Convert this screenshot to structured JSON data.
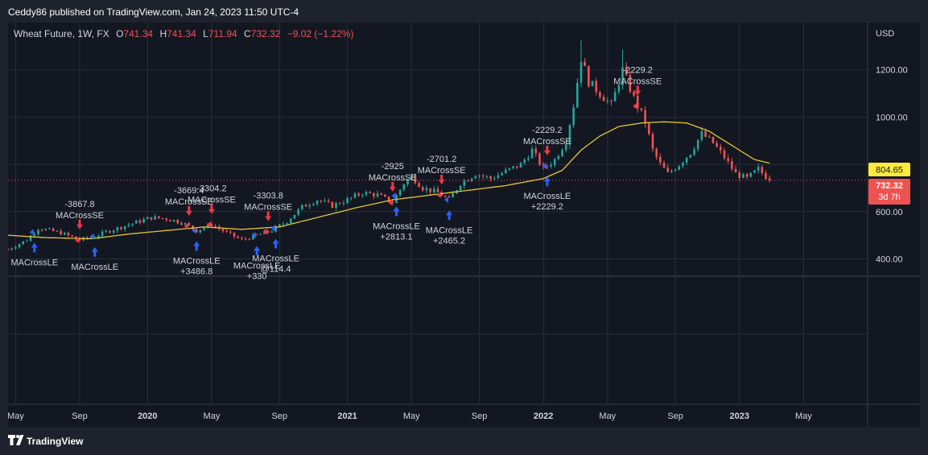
{
  "header": {
    "published_text": "Ceddy86 published on TradingView.com, Jan 24, 2023 11:50 UTC-4"
  },
  "footer": {
    "brand": "TradingView",
    "logo_icon": "tradingview-logo-icon"
  },
  "chart_data": {
    "type": "candlestick",
    "symbol_line": {
      "name": "Wheat Future, 1W, FX",
      "open_label": "O",
      "open": "741.34",
      "high_label": "H",
      "high": "741.34",
      "low_label": "L",
      "low": "711.94",
      "close_label": "C",
      "close": "732.32",
      "change": "−9.02 (−1.22%)"
    },
    "currency": "USD",
    "y_ticks": [
      {
        "label": "1200.00",
        "value": 1200
      },
      {
        "label": "1000.00",
        "value": 1000
      },
      {
        "label": "600.00",
        "value": 600
      },
      {
        "label": "400.00",
        "value": 400
      }
    ],
    "ylim": [
      330,
      1400
    ],
    "x_labels": [
      {
        "label": "May",
        "week": 0
      },
      {
        "label": "Sep",
        "week": 17
      },
      {
        "label": "2020",
        "week": 35
      },
      {
        "label": "May",
        "week": 52
      },
      {
        "label": "Sep",
        "week": 70
      },
      {
        "label": "2021",
        "week": 88
      },
      {
        "label": "May",
        "week": 105
      },
      {
        "label": "Sep",
        "week": 123
      },
      {
        "label": "2022",
        "week": 140
      },
      {
        "label": "May",
        "week": 157
      },
      {
        "label": "Sep",
        "week": 175
      },
      {
        "label": "2023",
        "week": 192
      },
      {
        "label": "May",
        "week": 209
      }
    ],
    "x_range_weeks": [
      -2,
      226
    ],
    "ma_price_label": "804.65",
    "last_price_label": "732.32",
    "countdown_label": "3d 7h",
    "last_price": 732.32,
    "colors": {
      "up": "#26a69a",
      "down": "#ef5350",
      "ma": "#e5c52f",
      "buy": "#2962ff",
      "sell": "#f23645",
      "text": "#d1d4dc",
      "grid": "#2a2e39",
      "last_badge": "#ef5350",
      "ma_badge": "#ffeb3b"
    },
    "signals": [
      {
        "type": "LE",
        "week": 5,
        "lines": [
          "MACrossLE"
        ]
      },
      {
        "type": "SE",
        "week": 17,
        "lines": [
          "-3867.8",
          "MACrossSE"
        ]
      },
      {
        "type": "LE",
        "week": 21,
        "lines": [
          "MACrossLE"
        ]
      },
      {
        "type": "SE",
        "week": 46,
        "lines": [
          "-3669.4",
          "MACrossSE"
        ]
      },
      {
        "type": "LE",
        "week": 48,
        "lines": [
          "MACrossLE",
          "+3486.8"
        ]
      },
      {
        "type": "SE",
        "week": 52,
        "lines": [
          "-3304.2",
          "MACrossSE"
        ]
      },
      {
        "type": "LE",
        "week": 64,
        "lines": [
          "MACrossLE",
          "+330"
        ]
      },
      {
        "type": "SE",
        "week": 67,
        "lines": [
          "-3303.8",
          "MACrossSE"
        ]
      },
      {
        "type": "LE",
        "week": 69,
        "lines": [
          "MACrossLE",
          "@114.4"
        ]
      },
      {
        "type": "SE",
        "week": 100,
        "lines": [
          "-2925",
          "MACrossSE"
        ]
      },
      {
        "type": "LE",
        "week": 101,
        "lines": [
          "MACrossLE",
          "+2813.1"
        ]
      },
      {
        "type": "SE",
        "week": 113,
        "lines": [
          "-2701.2",
          "MACrossSE"
        ]
      },
      {
        "type": "LE",
        "week": 115,
        "lines": [
          "MACrossLE",
          "+2465.2"
        ]
      },
      {
        "type": "SE",
        "week": 141,
        "lines": [
          "-2229.2",
          "MACrossSE"
        ]
      },
      {
        "type": "LE",
        "week": 141,
        "lines": [
          "MACrossLE",
          "+2229.2"
        ]
      },
      {
        "type": "SE",
        "week": 165,
        "lines": [
          "-2229.2",
          "MACrossSE"
        ]
      }
    ],
    "anchors": [
      [
        -2,
        440
      ],
      [
        3,
        480
      ],
      [
        6,
        530
      ],
      [
        12,
        510
      ],
      [
        17,
        480
      ],
      [
        21,
        495
      ],
      [
        25,
        520
      ],
      [
        30,
        545
      ],
      [
        36,
        575
      ],
      [
        40,
        570
      ],
      [
        44,
        555
      ],
      [
        48,
        520
      ],
      [
        52,
        545
      ],
      [
        56,
        510
      ],
      [
        60,
        480
      ],
      [
        64,
        500
      ],
      [
        68,
        520
      ],
      [
        72,
        560
      ],
      [
        76,
        620
      ],
      [
        80,
        650
      ],
      [
        84,
        625
      ],
      [
        88,
        650
      ],
      [
        92,
        680
      ],
      [
        96,
        670
      ],
      [
        100,
        640
      ],
      [
        103,
        720
      ],
      [
        105,
        750
      ],
      [
        108,
        700
      ],
      [
        112,
        680
      ],
      [
        115,
        650
      ],
      [
        118,
        720
      ],
      [
        122,
        760
      ],
      [
        126,
        740
      ],
      [
        130,
        770
      ],
      [
        134,
        800
      ],
      [
        137,
        860
      ],
      [
        140,
        780
      ],
      [
        143,
        820
      ],
      [
        146,
        900
      ],
      [
        148,
        1050
      ],
      [
        150,
        1250
      ],
      [
        152,
        1150
      ],
      [
        155,
        1100
      ],
      [
        158,
        1050
      ],
      [
        161,
        1200
      ],
      [
        164,
        1080
      ],
      [
        167,
        980
      ],
      [
        169,
        860
      ],
      [
        171,
        800
      ],
      [
        173,
        760
      ],
      [
        176,
        800
      ],
      [
        179,
        850
      ],
      [
        182,
        930
      ],
      [
        185,
        890
      ],
      [
        188,
        830
      ],
      [
        191,
        760
      ],
      [
        194,
        740
      ],
      [
        197,
        780
      ],
      [
        200,
        732
      ]
    ],
    "ma_anchors": [
      [
        -2,
        500
      ],
      [
        8,
        490
      ],
      [
        20,
        485
      ],
      [
        30,
        505
      ],
      [
        40,
        520
      ],
      [
        50,
        535
      ],
      [
        60,
        525
      ],
      [
        70,
        535
      ],
      [
        80,
        575
      ],
      [
        90,
        615
      ],
      [
        100,
        650
      ],
      [
        110,
        670
      ],
      [
        120,
        690
      ],
      [
        130,
        710
      ],
      [
        140,
        740
      ],
      [
        145,
        775
      ],
      [
        150,
        860
      ],
      [
        155,
        920
      ],
      [
        160,
        960
      ],
      [
        166,
        975
      ],
      [
        172,
        980
      ],
      [
        178,
        975
      ],
      [
        184,
        940
      ],
      [
        190,
        880
      ],
      [
        196,
        820
      ],
      [
        200,
        805
      ]
    ]
  }
}
